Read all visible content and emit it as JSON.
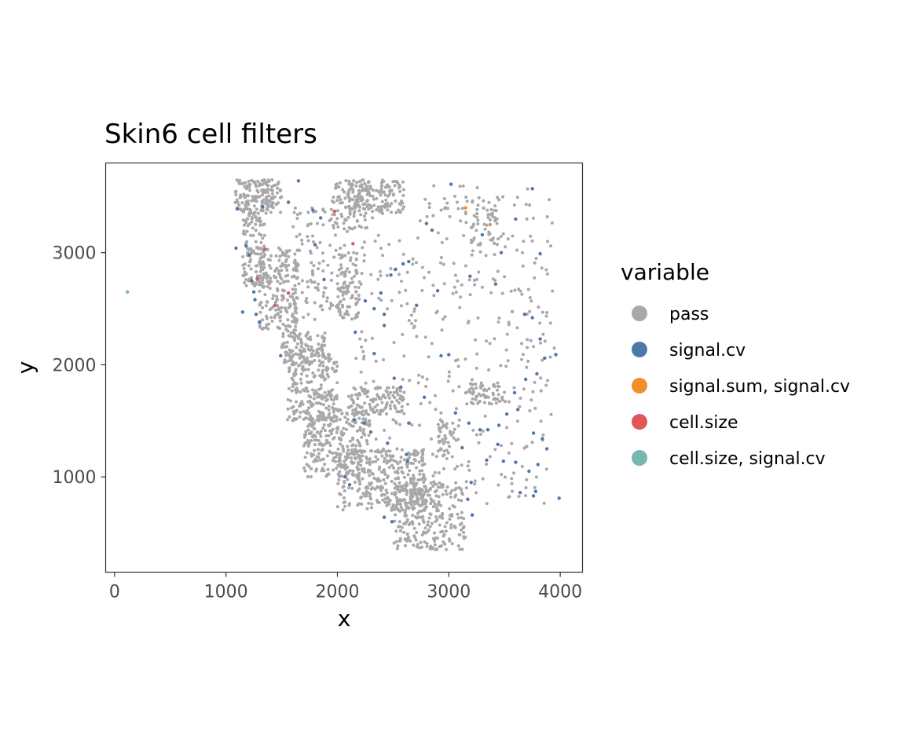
{
  "chart_data": {
    "type": "scatter",
    "title": "Skin6 cell filters",
    "xlabel": "x",
    "ylabel": "y",
    "xlim": [
      -80,
      4200
    ],
    "ylim": [
      150,
      3800
    ],
    "x_ticks": [
      0,
      1000,
      2000,
      3000,
      4000
    ],
    "x_tick_labels": [
      "0",
      "1000",
      "2000",
      "3000",
      "4000"
    ],
    "y_ticks": [
      1000,
      2000,
      3000
    ],
    "y_tick_labels": [
      "1000",
      "2000",
      "3000"
    ],
    "grid": false,
    "legend": {
      "title": "variable",
      "placement": "right"
    },
    "series": [
      {
        "name": "pass",
        "color": "#a8a8a8",
        "regions": [
          {
            "x": [
              1080,
              1500
            ],
            "y": [
              3350,
              3650
            ],
            "count": 160
          },
          {
            "x": [
              1150,
              1350
            ],
            "y": [
              2700,
              3400
            ],
            "count": 120
          },
          {
            "x": [
              1300,
              1650
            ],
            "y": [
              2300,
              3050
            ],
            "count": 200
          },
          {
            "x": [
              1500,
              1900
            ],
            "y": [
              2000,
              2300
            ],
            "count": 110
          },
          {
            "x": [
              1550,
              2000
            ],
            "y": [
              1500,
              2100
            ],
            "count": 220
          },
          {
            "x": [
              1700,
              2300
            ],
            "y": [
              1000,
              1600
            ],
            "count": 260
          },
          {
            "x": [
              2000,
              2800
            ],
            "y": [
              700,
              1250
            ],
            "count": 320
          },
          {
            "x": [
              2500,
              3150
            ],
            "y": [
              350,
              950
            ],
            "count": 260
          },
          {
            "x": [
              2100,
              2600
            ],
            "y": [
              1550,
              1800
            ],
            "count": 120
          },
          {
            "x": [
              1950,
              2250
            ],
            "y": [
              3200,
              3650
            ],
            "count": 80
          },
          {
            "x": [
              2100,
              2600
            ],
            "y": [
              3350,
              3650
            ],
            "count": 150
          },
          {
            "x": [
              2000,
              2200
            ],
            "y": [
              2400,
              3000
            ],
            "count": 80
          },
          {
            "x": [
              3150,
              3450
            ],
            "y": [
              3050,
              3500
            ],
            "count": 50
          },
          {
            "x": [
              3150,
              3500
            ],
            "y": [
              1650,
              1850
            ],
            "count": 60
          },
          {
            "x": [
              2900,
              3050
            ],
            "y": [
              1150,
              1500
            ],
            "count": 40
          },
          {
            "x": [
              2150,
              3950
            ],
            "y": [
              750,
              3600
            ],
            "count": 420
          },
          {
            "x": [
              1600,
              2100
            ],
            "y": [
              2400,
              3400
            ],
            "count": 120
          }
        ]
      },
      {
        "name": "signal.cv",
        "color": "#4e79a7",
        "points": [
          [
            1090,
            3040
          ],
          [
            1100,
            3390
          ],
          [
            1150,
            2470
          ],
          [
            1180,
            3060
          ],
          [
            1210,
            2980
          ],
          [
            1230,
            2750
          ],
          [
            1250,
            2650
          ],
          [
            1260,
            2580
          ],
          [
            1270,
            2450
          ],
          [
            1300,
            2380
          ],
          [
            1330,
            3410
          ],
          [
            1560,
            3450
          ],
          [
            1650,
            3640
          ],
          [
            1780,
            3380
          ],
          [
            1850,
            3310
          ],
          [
            1800,
            3070
          ],
          [
            1880,
            2760
          ],
          [
            1490,
            2080
          ],
          [
            2160,
            2290
          ],
          [
            2250,
            2570
          ],
          [
            2330,
            2500
          ],
          [
            2390,
            2640
          ],
          [
            2420,
            2450
          ],
          [
            2480,
            2800
          ],
          [
            2520,
            2850
          ],
          [
            2590,
            2900
          ],
          [
            2640,
            2920
          ],
          [
            2710,
            2530
          ],
          [
            2800,
            3260
          ],
          [
            2850,
            3200
          ],
          [
            2900,
            2660
          ],
          [
            3020,
            3610
          ],
          [
            3190,
            2790
          ],
          [
            3300,
            3160
          ],
          [
            3420,
            2720
          ],
          [
            3470,
            3000
          ],
          [
            3600,
            3300
          ],
          [
            3750,
            3570
          ],
          [
            3820,
            2990
          ],
          [
            3680,
            2450
          ],
          [
            3750,
            2420
          ],
          [
            3820,
            2230
          ],
          [
            3860,
            2060
          ],
          [
            3960,
            2090
          ],
          [
            3790,
            1920
          ],
          [
            3690,
            1870
          ],
          [
            3590,
            1750
          ],
          [
            3620,
            1600
          ],
          [
            3520,
            1560
          ],
          [
            3450,
            1460
          ],
          [
            3350,
            1420
          ],
          [
            3280,
            1420
          ],
          [
            3180,
            1480
          ],
          [
            3120,
            1260
          ],
          [
            3440,
            1290
          ],
          [
            3490,
            1140
          ],
          [
            3600,
            1130
          ],
          [
            3720,
            1050
          ],
          [
            3800,
            1110
          ],
          [
            3780,
            870
          ],
          [
            3880,
            1250
          ],
          [
            3840,
            1340
          ],
          [
            3760,
            1390
          ],
          [
            3990,
            810
          ],
          [
            3760,
            830
          ],
          [
            3640,
            860
          ],
          [
            3340,
            1150
          ],
          [
            3200,
            950
          ],
          [
            3170,
            800
          ],
          [
            3210,
            660
          ],
          [
            2930,
            2080
          ],
          [
            3000,
            2090
          ],
          [
            2780,
            1710
          ],
          [
            2640,
            1480
          ],
          [
            2510,
            1880
          ],
          [
            2450,
            1300
          ],
          [
            2630,
            1140
          ],
          [
            2490,
            600
          ],
          [
            2420,
            640
          ],
          [
            2070,
            1000
          ],
          [
            2110,
            930
          ],
          [
            2300,
            1400
          ],
          [
            2240,
            1480
          ],
          [
            2150,
            1510
          ],
          [
            2570,
            1800
          ],
          [
            2620,
            1200
          ],
          [
            2420,
            2350
          ],
          [
            2330,
            2100
          ],
          [
            3060,
            1570
          ]
        ]
      },
      {
        "name": "signal.sum, signal.cv",
        "color": "#f28e2b",
        "points": [
          [
            3150,
            3400
          ],
          [
            3370,
            3250
          ]
        ]
      },
      {
        "name": "cell.size",
        "color": "#e15759",
        "points": [
          [
            1975,
            3370
          ],
          [
            1350,
            3030
          ],
          [
            1560,
            2640
          ],
          [
            1440,
            2530
          ],
          [
            2140,
            3080
          ],
          [
            1280,
            2770
          ]
        ]
      },
      {
        "name": "cell.size, signal.cv",
        "color": "#76b7b2",
        "points": [
          [
            115,
            2650
          ]
        ]
      }
    ]
  }
}
